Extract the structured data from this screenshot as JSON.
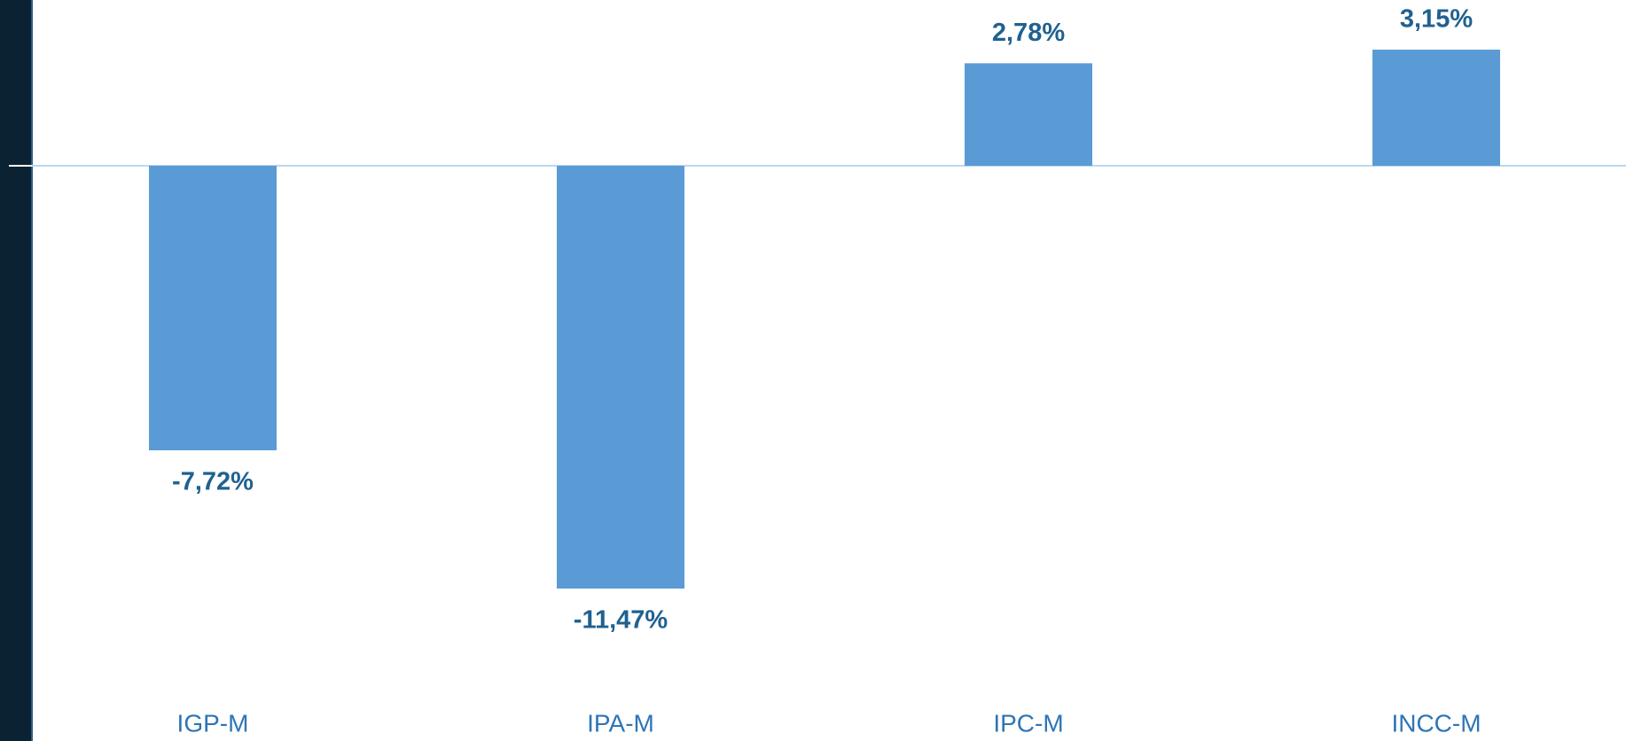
{
  "chart_data": {
    "type": "bar",
    "categories": [
      "IGP-M",
      "IPA-M",
      "IPC-M",
      "INCC-M"
    ],
    "values": [
      -7.72,
      -11.47,
      2.78,
      3.15
    ],
    "value_labels": [
      "-7,72%",
      "-11,47%",
      "2,78%",
      "3,15%"
    ],
    "color": "#5b9bd5"
  }
}
